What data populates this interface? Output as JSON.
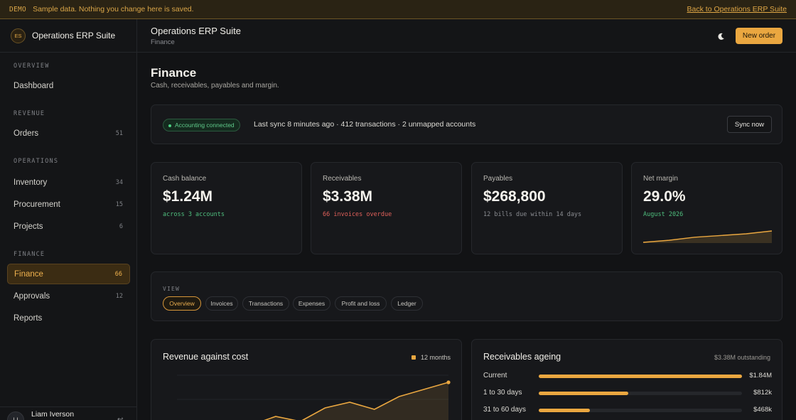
{
  "banner": {
    "tag": "DEMO",
    "message": "Sample data. Nothing you change here is saved.",
    "back_link": "Back to Operations ERP Suite"
  },
  "brand": {
    "initials": "ES",
    "name": "Operations ERP Suite"
  },
  "sidebar": {
    "sections": [
      "OVERVIEW",
      "REVENUE",
      "OPERATIONS",
      "FINANCE"
    ],
    "items": [
      {
        "label": "Dashboard",
        "count": ""
      },
      {
        "label": "Orders",
        "count": "51"
      },
      {
        "label": "Inventory",
        "count": "34"
      },
      {
        "label": "Procurement",
        "count": "15"
      },
      {
        "label": "Projects",
        "count": "6"
      },
      {
        "label": "Finance",
        "count": "66",
        "active": true
      },
      {
        "label": "Approvals",
        "count": "12"
      },
      {
        "label": "Reports",
        "count": ""
      }
    ],
    "user": {
      "name": "Liam Iverson",
      "initials": "LI"
    }
  },
  "header": {
    "title": "Operations ERP Suite",
    "subtitle": "Finance",
    "theme_icon": "moon-icon",
    "new_order": "New order"
  },
  "page": {
    "title": "Finance",
    "subtitle": "Cash, receivables, payables and margin."
  },
  "sync": {
    "status": "Accounting connected",
    "info": "Last sync 8 minutes ago · 412 transactions · 2 unmapped accounts",
    "button": "Sync now"
  },
  "kpis": [
    {
      "label": "Cash balance",
      "value": "$1.24M",
      "note": "across 3 accounts",
      "note_color": "#4fbf7e"
    },
    {
      "label": "Receivables",
      "value": "$3.38M",
      "note": "66 invoices overdue",
      "note_color": "#e0605a"
    },
    {
      "label": "Payables",
      "value": "$268,800",
      "note": "12 bills due within 14 days",
      "note_color": "#8a8c91"
    },
    {
      "label": "Net margin",
      "value": "29.0%",
      "note": "August 2026",
      "note_color": "#4fbf7e"
    }
  ],
  "view": {
    "label": "VIEW",
    "tabs": [
      "Overview",
      "Invoices",
      "Transactions",
      "Expenses",
      "Profit and loss",
      "Ledger"
    ],
    "active": "Overview"
  },
  "revenue_chart": {
    "title": "Revenue against cost",
    "legend": "12 months"
  },
  "ageing": {
    "title": "Receivables ageing",
    "outstanding": "$3.38M outstanding",
    "rows": [
      {
        "label": "Current",
        "value": "$1.84M",
        "fraction": 1.0
      },
      {
        "label": "1 to 30 days",
        "value": "$812k",
        "fraction": 0.44
      },
      {
        "label": "31 to 60 days",
        "value": "$468k",
        "fraction": 0.25
      }
    ]
  },
  "colors": {
    "accent": "#eaa740",
    "positive": "#4fbf7e",
    "negative": "#e0605a"
  },
  "chart_data": [
    {
      "type": "area",
      "title": "Net margin",
      "x": [
        1,
        2,
        3,
        4,
        5,
        6
      ],
      "values": [
        0.0,
        0.18,
        0.45,
        0.6,
        0.75,
        1.0
      ]
    },
    {
      "type": "area",
      "title": "Revenue against cost",
      "legend": "12 months",
      "x": [
        1,
        2,
        3,
        4,
        5,
        6,
        7,
        8,
        9,
        10,
        11,
        12
      ],
      "values": [
        0.08,
        0.14,
        0.22,
        0.3,
        0.42,
        0.35,
        0.54,
        0.62,
        0.52,
        0.7,
        0.8,
        0.9
      ]
    }
  ]
}
